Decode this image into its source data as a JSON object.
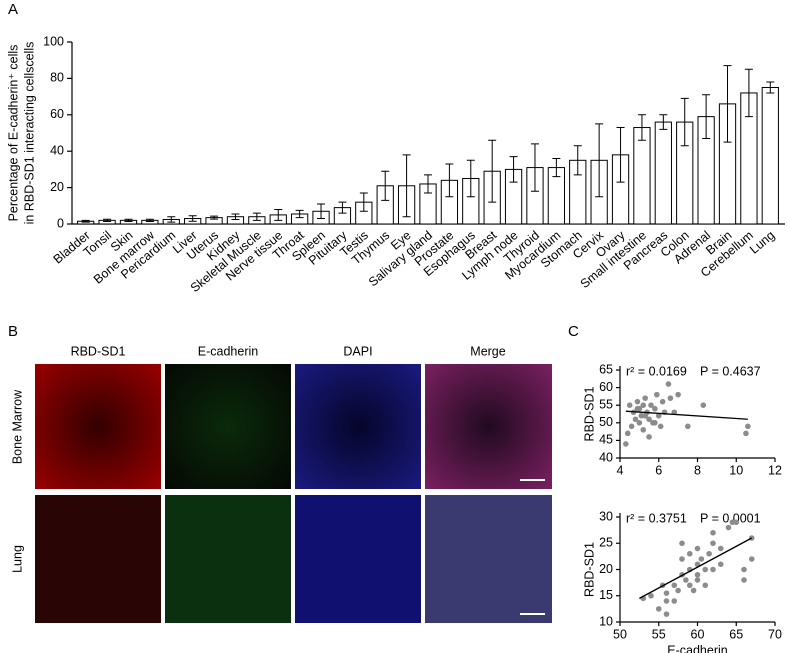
{
  "panel_labels": [
    "A",
    "B",
    "C"
  ],
  "images": {
    "channels": [
      "RBD-SD1",
      "E-cadherin",
      "DAPI",
      "Merge"
    ],
    "channel_colors": [
      "#d02020",
      "#20a040",
      "#2030d0",
      "#b03070"
    ],
    "rows": [
      "Bone Marrow",
      "Lung"
    ]
  },
  "chart_data": [
    {
      "type": "bar",
      "ylabel": [
        "Percentage of E-cadherin⁺ cells",
        "in RBD-SD1 interacting cellscells"
      ],
      "categories": [
        "Bladder",
        "Tonsil",
        "Skin",
        "Bone marrow",
        "Pericardium",
        "Liver",
        "Uterus",
        "Kidney",
        "Skeletal Muscle",
        "Nerve tissue",
        "Throat",
        "Spleen",
        "Pituitary",
        "Testis",
        "Thymus",
        "Eye",
        "Salivary gland",
        "Prostate",
        "Esophagus",
        "Breast",
        "Lymph node",
        "Thyroid",
        "Myocardium",
        "Stomach",
        "Cervix",
        "Ovary",
        "Small intestine",
        "Pancreas",
        "Colon",
        "Adrenal",
        "Brain",
        "Cerebellum",
        "Lung"
      ],
      "values": [
        1.5,
        2,
        2,
        2,
        2.5,
        3,
        3.5,
        4,
        4,
        5,
        5.5,
        7,
        9,
        12,
        21,
        21,
        22,
        24,
        25,
        29,
        30,
        31,
        31,
        35,
        35,
        38,
        53,
        56,
        56,
        59,
        66,
        72,
        75
      ],
      "errors": [
        0.5,
        0.6,
        0.6,
        0.6,
        1.5,
        1.5,
        0.8,
        1.5,
        2,
        3,
        2,
        4,
        3,
        5,
        8,
        17,
        5,
        9,
        10,
        17,
        7,
        13,
        5,
        8,
        20,
        15,
        7,
        4,
        13,
        12,
        21,
        13,
        3
      ],
      "color": "#ffffff",
      "edge_color": "#000000",
      "label_color": "#000000",
      "highlight_indices": [
        3,
        32
      ],
      "highlight_color": "#c00000",
      "ylim": [
        0,
        100
      ],
      "yticks": [
        0,
        20,
        40,
        60,
        80,
        100
      ]
    },
    {
      "type": "scatter",
      "ylabel": "RBD-SD1",
      "annotations": [
        "r² = 0.0169",
        "P = 0.4637"
      ],
      "x": [
        4.3,
        4.5,
        4.6,
        4.7,
        4.8,
        4.9,
        5.0,
        5.0,
        5.1,
        5.2,
        5.2,
        5.3,
        5.4,
        5.5,
        5.5,
        5.6,
        5.7,
        5.8,
        5.9,
        6.0,
        6.1,
        6.2,
        6.3,
        6.5,
        6.6,
        6.8,
        7.0,
        7.5,
        8.3,
        10.5,
        10.6,
        4.4,
        5.3,
        5.8,
        4.9
      ],
      "values": [
        44,
        55,
        49,
        53,
        51,
        56,
        50,
        54,
        52,
        48,
        55,
        57,
        53,
        46,
        51,
        55,
        50,
        54,
        58,
        52,
        49,
        56,
        53,
        61,
        57,
        53,
        58,
        49,
        55,
        47,
        49,
        47,
        52,
        50,
        54
      ],
      "fit_x": [
        4.3,
        10.6
      ],
      "fit_y": [
        53.3,
        51
      ],
      "color": "#8c8c8c",
      "xlim": [
        4,
        12
      ],
      "xticks": [
        4,
        6,
        8,
        10,
        12
      ],
      "ylim": [
        40,
        65
      ],
      "yticks": [
        40,
        45,
        50,
        55,
        60,
        65
      ]
    },
    {
      "type": "scatter",
      "ylabel": "RBD-SD1",
      "xlabel": "E-cadherin",
      "annotations": [
        "r² = 0.3751",
        "P = 0.0001"
      ],
      "x": [
        53,
        54,
        55,
        55.5,
        56,
        56,
        57,
        57.5,
        58,
        58,
        58.5,
        59,
        59,
        59.5,
        60,
        60,
        60,
        60.5,
        61,
        61,
        61.5,
        62,
        62,
        62,
        63,
        63,
        64,
        64.5,
        65,
        66,
        66,
        67,
        67,
        58,
        59,
        60,
        56,
        57
      ],
      "values": [
        14.5,
        15,
        12.5,
        17,
        14,
        15.5,
        17,
        16,
        19,
        22,
        18,
        17,
        20,
        16,
        19,
        18,
        21,
        22,
        20,
        17,
        23,
        20,
        25,
        27,
        24,
        21,
        28,
        29,
        29,
        20,
        18,
        22,
        26,
        25,
        23,
        24,
        11.5,
        14
      ],
      "fit_x": [
        52.5,
        67
      ],
      "fit_y": [
        14.5,
        26
      ],
      "color": "#8c8c8c",
      "xlim": [
        50,
        70
      ],
      "xticks": [
        50,
        55,
        60,
        65,
        70
      ],
      "ylim": [
        10,
        30
      ],
      "yticks": [
        10,
        15,
        20,
        25,
        30
      ]
    }
  ]
}
